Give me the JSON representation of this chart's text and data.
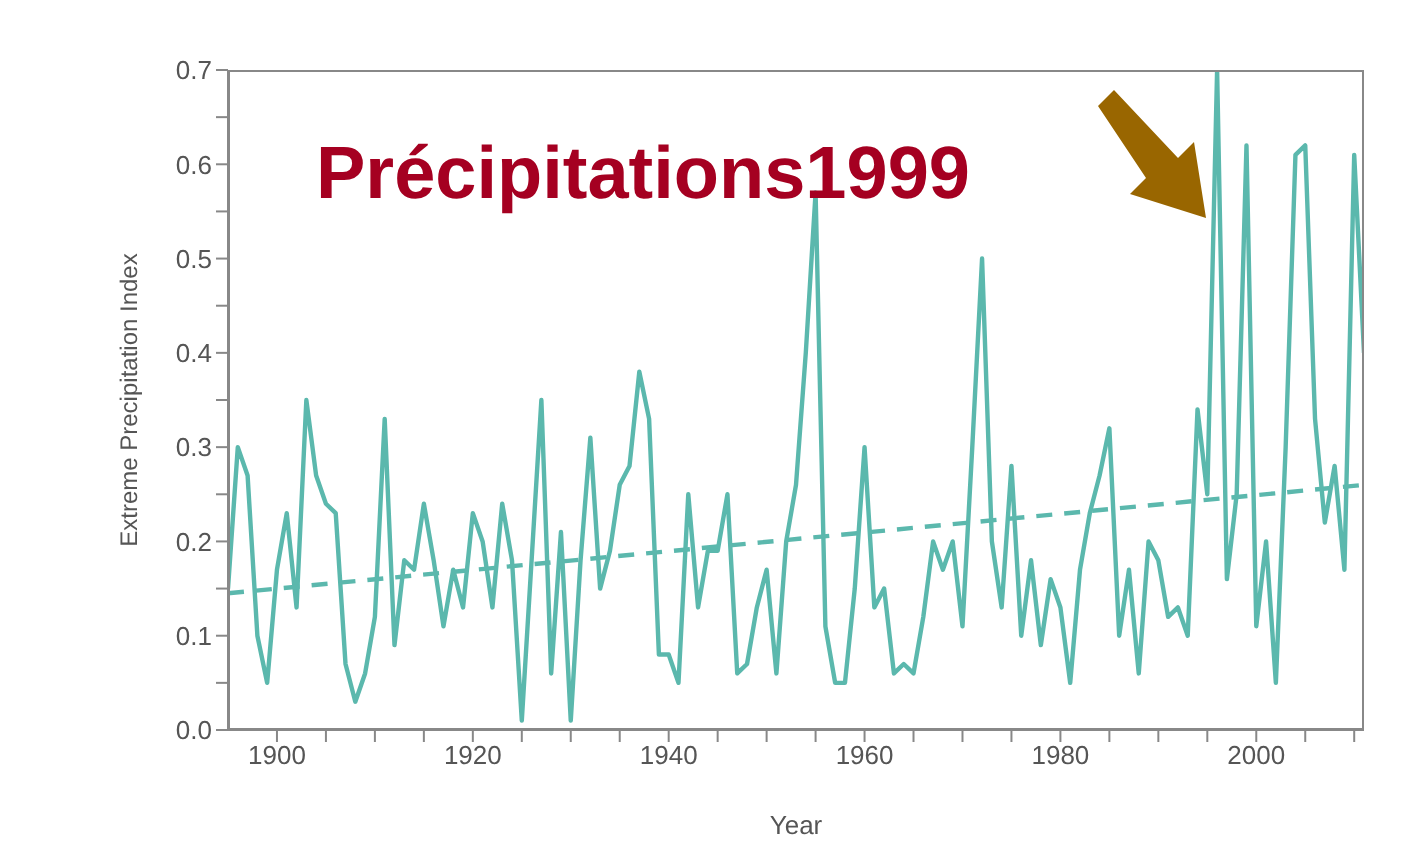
{
  "chart_data": {
    "type": "line",
    "title": "Précipitations1999",
    "xlabel": "Year",
    "ylabel": "Extreme Precipitation Index",
    "xlim": [
      1895,
      2011
    ],
    "ylim": [
      0,
      0.7
    ],
    "xticks": [
      1900,
      {
        "value": 1905,
        "label": null
      },
      {
        "value": 1910,
        "label": null
      },
      {
        "value": 1915,
        "label": null
      },
      1920,
      {
        "value": 1925,
        "label": null
      },
      {
        "value": 1930,
        "label": null
      },
      {
        "value": 1935,
        "label": null
      },
      1940,
      {
        "value": 1945,
        "label": null
      },
      {
        "value": 1950,
        "label": null
      },
      {
        "value": 1955,
        "label": null
      },
      1960,
      {
        "value": 1965,
        "label": null
      },
      {
        "value": 1970,
        "label": null
      },
      {
        "value": 1975,
        "label": null
      },
      1980,
      {
        "value": 1985,
        "label": null
      },
      {
        "value": 1990,
        "label": null
      },
      {
        "value": 1995,
        "label": null
      },
      2000,
      {
        "value": 2005,
        "label": null
      },
      {
        "value": 2010,
        "label": null
      }
    ],
    "yticks": [
      {
        "value": 0,
        "label": "0.0"
      },
      {
        "value": 0.05,
        "label": null
      },
      0.1,
      {
        "value": 0.15,
        "label": null
      },
      0.2,
      {
        "value": 0.25,
        "label": null
      },
      0.3,
      {
        "value": 0.35,
        "label": null
      },
      0.4,
      {
        "value": 0.45,
        "label": null
      },
      0.5,
      {
        "value": 0.55,
        "label": null
      },
      0.6,
      {
        "value": 0.65,
        "label": null
      },
      0.7
    ],
    "marker": "none",
    "series": [
      {
        "color": "#5bb8ad",
        "x": [
          1895,
          1896,
          1897,
          1898,
          1899,
          1900,
          1901,
          1902,
          1903,
          1904,
          1905,
          1906,
          1907,
          1908,
          1909,
          1910,
          1911,
          1912,
          1913,
          1914,
          1915,
          1916,
          1917,
          1918,
          1919,
          1920,
          1921,
          1922,
          1923,
          1924,
          1925,
          1926,
          1927,
          1928,
          1929,
          1930,
          1931,
          1932,
          1933,
          1934,
          1935,
          1936,
          1937,
          1938,
          1939,
          1940,
          1941,
          1942,
          1943,
          1944,
          1945,
          1946,
          1947,
          1948,
          1949,
          1950,
          1951,
          1952,
          1953,
          1954,
          1955,
          1956,
          1957,
          1958,
          1959,
          1960,
          1961,
          1962,
          1963,
          1964,
          1965,
          1966,
          1967,
          1968,
          1969,
          1970,
          1971,
          1972,
          1973,
          1974,
          1975,
          1976,
          1977,
          1978,
          1979,
          1980,
          1981,
          1982,
          1983,
          1984,
          1985,
          1986,
          1987,
          1988,
          1989,
          1990,
          1991,
          1992,
          1993,
          1994,
          1995,
          1996,
          1997,
          1998,
          1999,
          2000,
          2001,
          2002,
          2003,
          2004,
          2005,
          2006,
          2007,
          2008,
          2009,
          2010,
          2011
        ],
        "values": [
          0.15,
          0.3,
          0.27,
          0.1,
          0.05,
          0.17,
          0.23,
          0.13,
          0.35,
          0.27,
          0.24,
          0.23,
          0.07,
          0.03,
          0.06,
          0.12,
          0.33,
          0.09,
          0.18,
          0.17,
          0.24,
          0.18,
          0.11,
          0.17,
          0.13,
          0.23,
          0.2,
          0.13,
          0.24,
          0.18,
          0.01,
          0.18,
          0.35,
          0.06,
          0.21,
          0.01,
          0.18,
          0.31,
          0.15,
          0.19,
          0.26,
          0.28,
          0.38,
          0.33,
          0.08,
          0.08,
          0.05,
          0.25,
          0.13,
          0.19,
          0.19,
          0.25,
          0.06,
          0.07,
          0.13,
          0.17,
          0.06,
          0.2,
          0.26,
          0.4,
          0.57,
          0.11,
          0.05,
          0.05,
          0.15,
          0.3,
          0.13,
          0.15,
          0.06,
          0.07,
          0.06,
          0.12,
          0.2,
          0.17,
          0.2,
          0.11,
          0.3,
          0.5,
          0.2,
          0.13,
          0.28,
          0.1,
          0.18,
          0.09,
          0.16,
          0.13,
          0.05,
          0.17,
          0.23,
          0.27,
          0.32,
          0.1,
          0.17,
          0.06,
          0.2,
          0.18,
          0.12,
          0.13,
          0.1,
          0.34,
          0.25,
          0.7,
          0.16,
          0.25,
          0.62,
          0.11,
          0.2,
          0.05,
          0.3,
          0.61,
          0.62,
          0.33,
          0.22,
          0.28,
          0.17,
          0.61,
          0.4
        ]
      },
      {
        "color": "#5bb8ad",
        "line_style": "dashed",
        "x": [
          1895,
          2011
        ],
        "values": [
          0.145,
          0.26
        ]
      }
    ]
  }
}
